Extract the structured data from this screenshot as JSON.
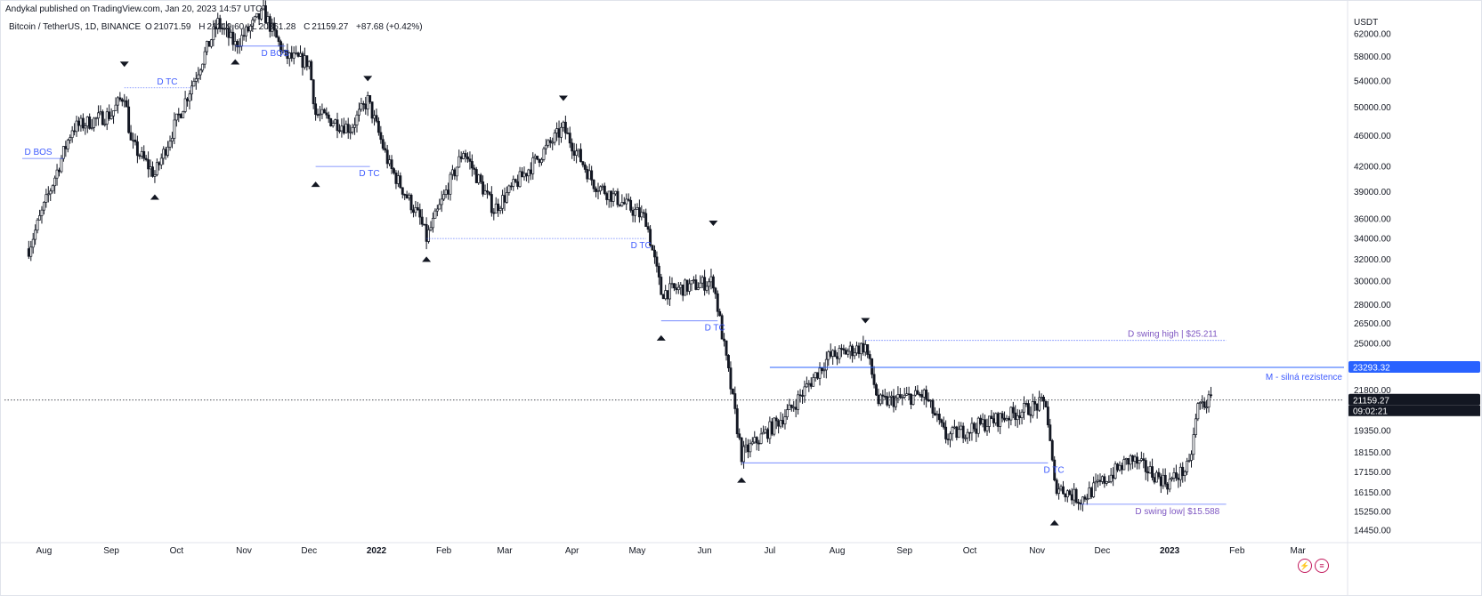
{
  "publisher_line": "Andykal published on TradingView.com, Jan 20, 2023 14:57 UTC",
  "legend": {
    "symbol": "Bitcoin / TetherUS, 1D, BINANCE",
    "o_label": "O",
    "o_value": "21071.59",
    "h_label": "H",
    "h_value": "21219.60",
    "l_label": "L",
    "l_value": "20861.28",
    "c_label": "C",
    "c_value": "21159.27",
    "change": "+87.68 (+0.42%)"
  },
  "price_axis": {
    "currency": "USDT",
    "ticks": [
      "62000.00",
      "58000.00",
      "54000.00",
      "50000.00",
      "46000.00",
      "42000.00",
      "39000.00",
      "36000.00",
      "34000.00",
      "32000.00",
      "30000.00",
      "28000.00",
      "26500.00",
      "25000.00",
      "21800.00",
      "19350.00",
      "18150.00",
      "17150.00",
      "16150.00",
      "15250.00",
      "14450.00"
    ]
  },
  "time_axis": {
    "labels": [
      "Aug",
      "Sep",
      "Oct",
      "Nov",
      "Dec",
      "2022",
      "Feb",
      "Mar",
      "Apr",
      "May",
      "Jun",
      "Jul",
      "Aug",
      "Sep",
      "Oct",
      "Nov",
      "Dec",
      "2023",
      "Feb",
      "Mar"
    ]
  },
  "price_tags": {
    "resistance_value": "23293.32",
    "current_price": "21159.27",
    "countdown": "09:02:21"
  },
  "annotations": {
    "d_bos_1": "D BOS",
    "d_bos_2": "D BOS",
    "d_tc_1": "D TC",
    "d_tc_2": "D TC",
    "d_tc_3": "D TC",
    "d_tc_4": "D TC",
    "d_tc_5": "D TC",
    "swing_high": "D swing high | $25.211",
    "resistance": "M - silná rezistence",
    "swing_low": "D swing low| $15.588"
  },
  "colors": {
    "annotation_blue": "#3d5afe",
    "resistance_line": "#2962ff",
    "resistance_tag": "#2962ff",
    "current_tag": "#131722",
    "candles": "#131722",
    "purple_text": "#7e57c2"
  },
  "chart_data": {
    "type": "candlestick",
    "title": "Bitcoin / TetherUS, 1D, BINANCE",
    "x_labels": [
      "Aug",
      "Sep",
      "Oct",
      "Nov",
      "Dec",
      "2022",
      "Feb",
      "Mar",
      "Apr",
      "May",
      "Jun",
      "Jul",
      "Aug",
      "Sep",
      "Oct",
      "Nov",
      "Dec",
      "2023",
      "Feb",
      "Mar"
    ],
    "y_scale": "log",
    "ylim": [
      14000,
      66000
    ],
    "key_levels": [
      {
        "label": "M - silná rezistence",
        "price": 23293.32
      },
      {
        "label": "D swing high | $25.211",
        "price": 25211
      },
      {
        "label": "D swing low| $15.588",
        "price": 15588
      }
    ],
    "path_closes": [
      {
        "date": "2021-07-25",
        "price": 33000
      },
      {
        "date": "2021-08-05",
        "price": 40000
      },
      {
        "date": "2021-08-14",
        "price": 47000
      },
      {
        "date": "2021-09-01",
        "price": 49000
      },
      {
        "date": "2021-09-07",
        "price": 52000
      },
      {
        "date": "2021-09-10",
        "price": 45000
      },
      {
        "date": "2021-09-21",
        "price": 41000
      },
      {
        "date": "2021-10-01",
        "price": 48000
      },
      {
        "date": "2021-10-10",
        "price": 55000
      },
      {
        "date": "2021-10-20",
        "price": 64000
      },
      {
        "date": "2021-10-28",
        "price": 60000
      },
      {
        "date": "2021-11-10",
        "price": 66000
      },
      {
        "date": "2021-11-20",
        "price": 58000
      },
      {
        "date": "2021-12-01",
        "price": 57000
      },
      {
        "date": "2021-12-04",
        "price": 49000
      },
      {
        "date": "2021-12-20",
        "price": 47000
      },
      {
        "date": "2021-12-28",
        "price": 51000
      },
      {
        "date": "2022-01-07",
        "price": 42000
      },
      {
        "date": "2022-01-21",
        "price": 36000
      },
      {
        "date": "2022-01-24",
        "price": 34000
      },
      {
        "date": "2022-02-10",
        "price": 44000
      },
      {
        "date": "2022-02-24",
        "price": 37000
      },
      {
        "date": "2022-03-28",
        "price": 47000
      },
      {
        "date": "2022-04-11",
        "price": 40000
      },
      {
        "date": "2022-05-05",
        "price": 36000
      },
      {
        "date": "2022-05-12",
        "price": 29000
      },
      {
        "date": "2022-06-05",
        "price": 30000
      },
      {
        "date": "2022-06-13",
        "price": 22000
      },
      {
        "date": "2022-06-18",
        "price": 18000
      },
      {
        "date": "2022-07-10",
        "price": 20500
      },
      {
        "date": "2022-07-28",
        "price": 24000
      },
      {
        "date": "2022-08-14",
        "price": 24800
      },
      {
        "date": "2022-08-20",
        "price": 21000
      },
      {
        "date": "2022-09-10",
        "price": 21500
      },
      {
        "date": "2022-09-20",
        "price": 19000
      },
      {
        "date": "2022-10-25",
        "price": 20500
      },
      {
        "date": "2022-11-05",
        "price": 21000
      },
      {
        "date": "2022-11-09",
        "price": 16500
      },
      {
        "date": "2022-11-21",
        "price": 15800
      },
      {
        "date": "2022-12-14",
        "price": 17800
      },
      {
        "date": "2022-12-31",
        "price": 16600
      },
      {
        "date": "2023-01-10",
        "price": 17400
      },
      {
        "date": "2023-01-14",
        "price": 20800
      },
      {
        "date": "2023-01-20",
        "price": 21159
      }
    ]
  }
}
